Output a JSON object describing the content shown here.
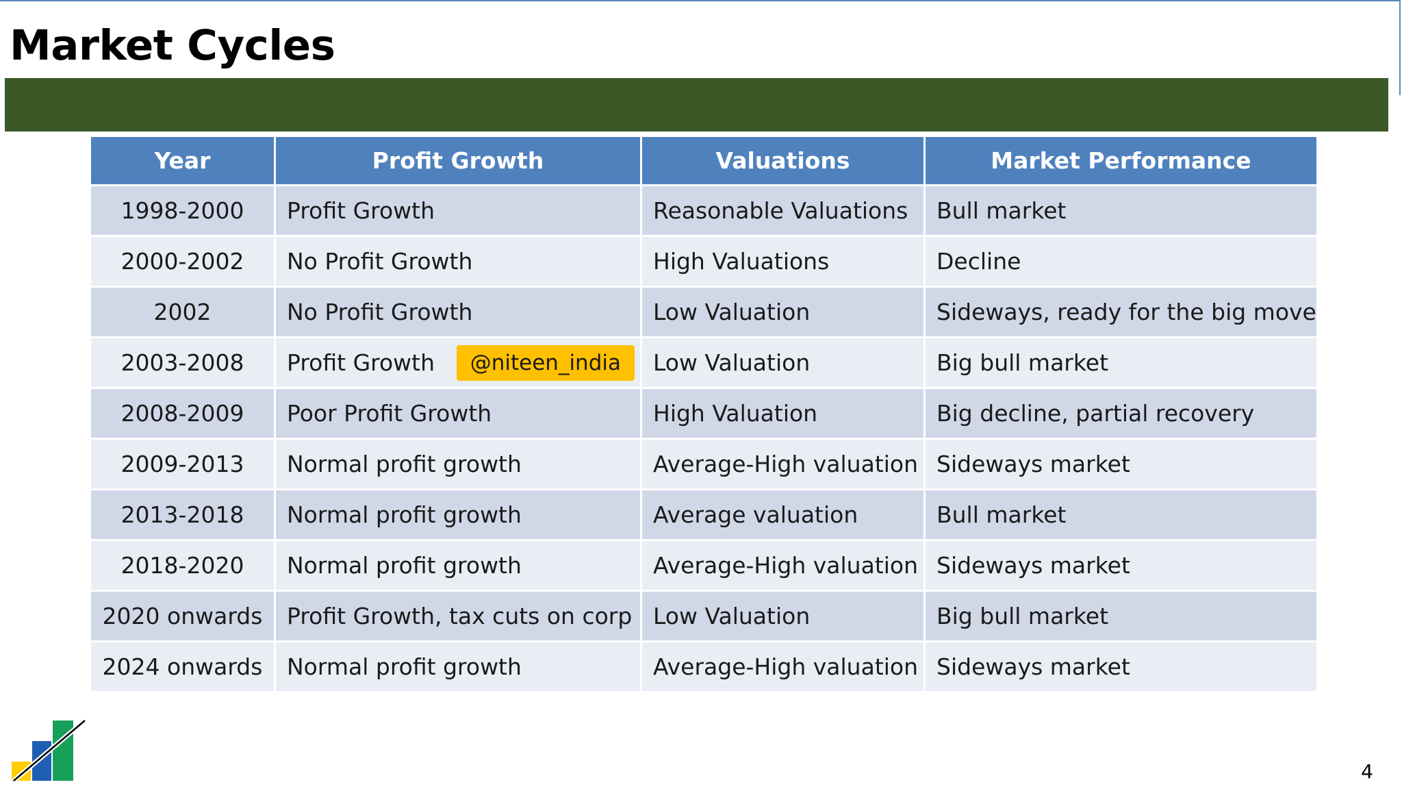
{
  "title": "Market Cycles",
  "colors": {
    "accent_bar": "#3a5926",
    "header_bg": "#4f81bd",
    "row_odd": "#d0d8e8",
    "row_even": "#e9edf4",
    "handle_bg": "#ffc000"
  },
  "table": {
    "headers": [
      "Year",
      "Profit Growth",
      "Valuations",
      "Market Performance"
    ],
    "rows": [
      {
        "year": "1998-2000",
        "profit": "Profit Growth",
        "valuation": "Reasonable Valuations",
        "performance": "Bull market"
      },
      {
        "year": "2000-2002",
        "profit": "No Profit Growth",
        "valuation": "High Valuations",
        "performance": "Decline"
      },
      {
        "year": "2002",
        "profit": "No Profit Growth",
        "valuation": "Low Valuation",
        "performance": "Sideways, ready for the big move"
      },
      {
        "year": "2003-2008",
        "profit": "Profit Growth",
        "valuation": "Low Valuation",
        "performance": "Big bull market"
      },
      {
        "year": "2008-2009",
        "profit": "Poor Profit Growth",
        "valuation": "High Valuation",
        "performance": "Big decline, partial recovery"
      },
      {
        "year": "2009-2013",
        "profit": "Normal profit growth",
        "valuation": "Average-High valuation",
        "performance": "Sideways market"
      },
      {
        "year": "2013-2018",
        "profit": "Normal profit growth",
        "valuation": "Average valuation",
        "performance": "Bull market"
      },
      {
        "year": "2018-2020",
        "profit": "Normal profit growth",
        "valuation": "Average-High valuation",
        "performance": "Sideways market"
      },
      {
        "year": "2020 onwards",
        "profit": "Profit Growth, tax cuts on corp",
        "valuation": "Low Valuation",
        "performance": "Big bull market"
      },
      {
        "year": "2024 onwards",
        "profit": "Normal profit growth",
        "valuation": "Average-High valuation",
        "performance": "Sideways market"
      }
    ]
  },
  "overlay": {
    "handle": "@niteen_india"
  },
  "logo": {
    "icon": "bar-chart-growth-logo"
  },
  "page_number": "4"
}
